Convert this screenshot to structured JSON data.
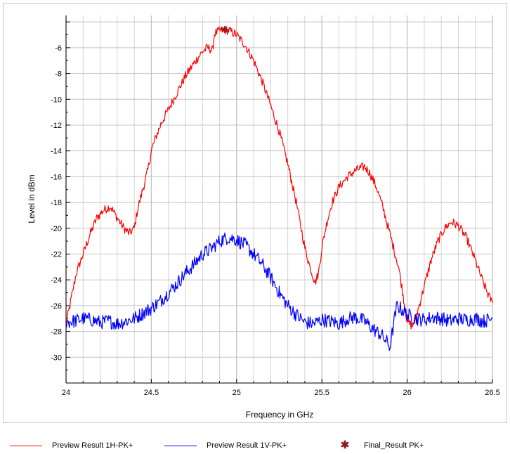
{
  "chart_data": {
    "type": "line",
    "title": "",
    "xlabel": "Frequency in GHz",
    "ylabel": "Level in dBm",
    "xlim": [
      24,
      26.5
    ],
    "ylim": [
      -32,
      -3.5
    ],
    "grid": true,
    "x_ticks": [
      "24",
      "24.5",
      "25",
      "25.5",
      "26",
      "26.5"
    ],
    "y_ticks": [
      "-6",
      "-8",
      "-10",
      "-12",
      "-14",
      "-16",
      "-18",
      "-20",
      "-22",
      "-24",
      "-26",
      "-28",
      "-30"
    ],
    "legend_position": "bottom",
    "series": [
      {
        "name": "Preview Result 1H-PK+",
        "color": "#ff0000",
        "x": [
          24.0,
          24.03,
          24.06,
          24.1,
          24.14,
          24.18,
          24.22,
          24.26,
          24.3,
          24.34,
          24.37,
          24.4,
          24.42,
          24.45,
          24.48,
          24.5,
          24.53,
          24.56,
          24.6,
          24.65,
          24.7,
          24.75,
          24.8,
          24.83,
          24.86,
          24.87,
          24.9,
          24.93,
          24.96,
          25.0,
          25.05,
          25.1,
          25.15,
          25.2,
          25.25,
          25.3,
          25.35,
          25.4,
          25.43,
          25.46,
          25.48,
          25.5,
          25.53,
          25.56,
          25.6,
          25.65,
          25.7,
          25.75,
          25.78,
          25.82,
          25.86,
          25.9,
          25.92,
          25.95,
          25.98,
          26.0,
          26.03,
          26.06,
          26.1,
          26.14,
          26.18,
          26.22,
          26.26,
          26.3,
          26.35,
          26.4,
          26.44,
          26.47,
          26.5
        ],
        "y": [
          -27.5,
          -25.5,
          -23.5,
          -22.0,
          -20.5,
          -19.2,
          -18.6,
          -18.3,
          -19.2,
          -20.0,
          -20.4,
          -20.0,
          -18.5,
          -17.0,
          -15.5,
          -14.0,
          -12.8,
          -11.8,
          -10.8,
          -9.5,
          -8.2,
          -7.2,
          -6.3,
          -6.0,
          -6.2,
          -4.9,
          -4.7,
          -4.6,
          -4.7,
          -5.0,
          -5.8,
          -7.0,
          -8.6,
          -10.5,
          -12.5,
          -15.0,
          -18.0,
          -21.5,
          -23.0,
          -24.2,
          -23.5,
          -21.5,
          -19.5,
          -18.0,
          -16.8,
          -16.0,
          -15.5,
          -15.2,
          -15.7,
          -16.8,
          -18.5,
          -20.5,
          -21.5,
          -23.0,
          -25.5,
          -27.2,
          -27.6,
          -26.5,
          -24.5,
          -22.5,
          -21.0,
          -20.0,
          -19.5,
          -19.8,
          -20.8,
          -22.5,
          -24.0,
          -25.0,
          -25.8
        ]
      },
      {
        "name": "Preview Result 1V-PK+",
        "color": "#0000ff",
        "x": [
          24.0,
          24.05,
          24.1,
          24.15,
          24.2,
          24.25,
          24.3,
          24.35,
          24.4,
          24.45,
          24.5,
          24.55,
          24.6,
          24.65,
          24.7,
          24.75,
          24.8,
          24.85,
          24.9,
          24.95,
          25.0,
          25.05,
          25.1,
          25.15,
          25.2,
          25.25,
          25.3,
          25.35,
          25.4,
          25.45,
          25.5,
          25.55,
          25.6,
          25.65,
          25.7,
          25.75,
          25.8,
          25.85,
          25.88,
          25.9,
          25.92,
          25.94,
          25.96,
          26.0,
          26.05,
          26.1,
          26.15,
          26.2,
          26.25,
          26.3,
          26.35,
          26.4,
          26.45,
          26.5
        ],
        "y": [
          -27.3,
          -27.2,
          -27.0,
          -27.1,
          -27.3,
          -27.2,
          -27.4,
          -27.2,
          -27.0,
          -26.6,
          -26.2,
          -25.7,
          -25.0,
          -24.3,
          -23.5,
          -22.8,
          -22.0,
          -21.6,
          -21.0,
          -20.7,
          -20.9,
          -21.3,
          -22.0,
          -22.8,
          -23.8,
          -25.0,
          -26.0,
          -26.7,
          -27.3,
          -27.4,
          -27.1,
          -27.2,
          -27.4,
          -27.0,
          -26.9,
          -27.2,
          -27.8,
          -28.3,
          -28.8,
          -29.2,
          -27.5,
          -26.0,
          -26.2,
          -26.7,
          -27.0,
          -27.1,
          -26.9,
          -27.0,
          -27.2,
          -27.0,
          -27.1,
          -27.0,
          -27.2,
          -27.0
        ]
      }
    ],
    "markers": [
      {
        "name": "Final_Result PK+",
        "x": 24.93,
        "y": -4.6,
        "color": "#8b1a1a"
      }
    ]
  }
}
